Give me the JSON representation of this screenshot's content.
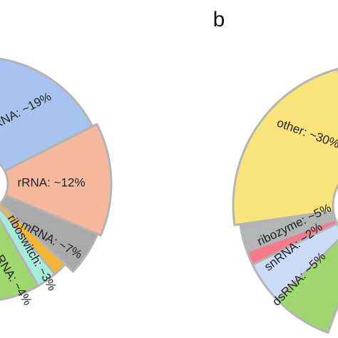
{
  "panel_labels": [
    "b"
  ],
  "chart_data": [
    {
      "type": "pie",
      "style": "donut",
      "categories": [
        "…RNA",
        "rRNA",
        "mRNA",
        "riboswitch",
        "…RNA",
        ""
      ],
      "labels": [
        "…RNA: ~19%",
        "rRNA: ~12%",
        "mRNA: ~7%",
        "riboswitch: ~3%",
        "…RNA: ~4%",
        ""
      ],
      "values": [
        19,
        12,
        7,
        3,
        4,
        null
      ],
      "colors": [
        "#a7c4ee",
        "#f6b89d",
        "#a9a9a9",
        "#f4b434",
        "#a6ecdc",
        "#9fd86e"
      ]
    },
    {
      "type": "pie",
      "style": "donut",
      "title": "b",
      "categories": [
        "other",
        "ribozyme",
        "snRNA",
        "dsRNA",
        ""
      ],
      "labels": [
        "other: ~30%",
        "ribozyme: ~5%",
        "snRNA: ~2%",
        "dsRNA: ~5%",
        ""
      ],
      "values": [
        30,
        5,
        2,
        5,
        null
      ],
      "colors": [
        "#f9e37a",
        "#b2b6b6",
        "#f57a8c",
        "#cbdcf6",
        "#9fd86e"
      ]
    }
  ]
}
